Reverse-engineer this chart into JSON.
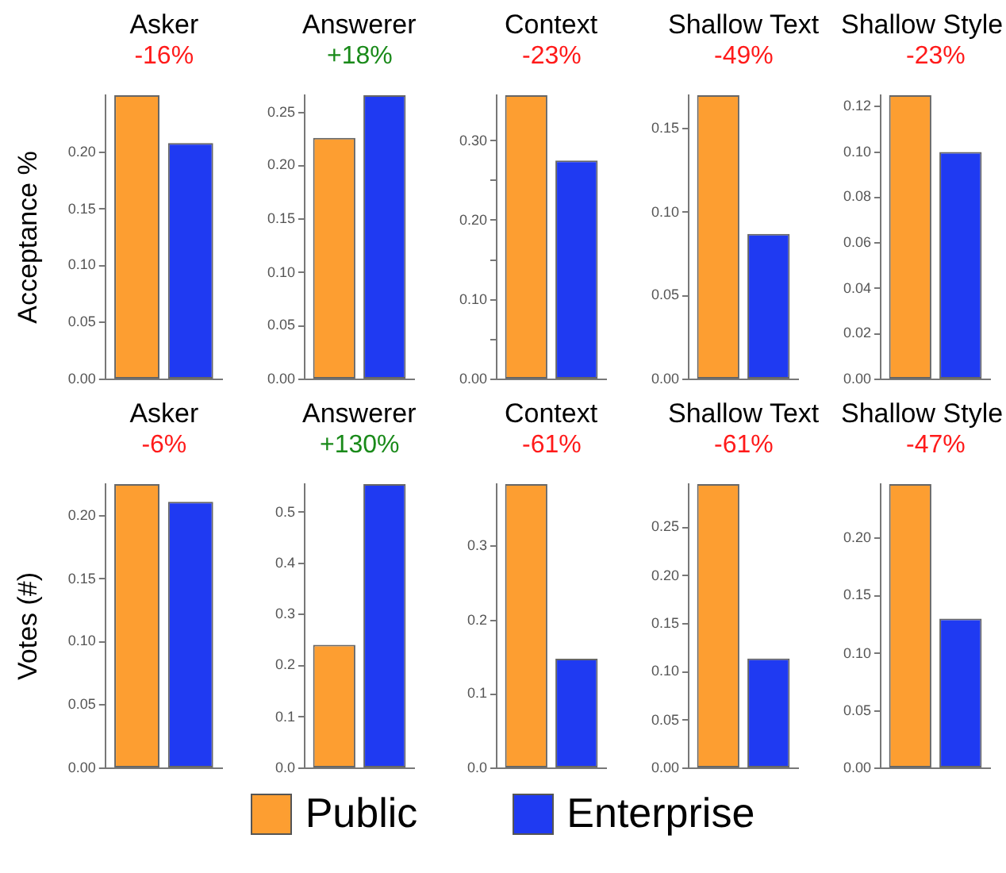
{
  "chart_data": [
    {
      "type": "bar",
      "title": "Asker",
      "subtitle": "-16%",
      "ylabel": "Acceptance %",
      "categories": [
        null
      ],
      "tick_labels": "y",
      "grid": false,
      "series": [
        {
          "color": "#fd9e31",
          "values": [
            0.25
          ]
        },
        {
          "color": "#1f3af2",
          "values": [
            0.208
          ]
        }
      ],
      "ylim": [
        0,
        0.25
      ],
      "yticks": [
        {
          "value": 0,
          "label": "0.00"
        },
        {
          "value": 0.05,
          "label": "0.05"
        },
        {
          "value": 0.1,
          "label": "0.10"
        },
        {
          "value": 0.15,
          "label": "0.15"
        },
        {
          "value": 0.2,
          "label": "0.20"
        }
      ]
    },
    {
      "type": "bar",
      "title": "Answerer",
      "subtitle": "+18%",
      "categories": [
        null
      ],
      "tick_labels": "y",
      "grid": false,
      "series": [
        {
          "color": "#fd9e31",
          "values": [
            0.226
          ]
        },
        {
          "color": "#1f3af2",
          "values": [
            0.266
          ]
        }
      ],
      "ylim": [
        0,
        0.266
      ],
      "yticks": [
        {
          "value": 0,
          "label": "0.00"
        },
        {
          "value": 0.05,
          "label": "0.05"
        },
        {
          "value": 0.1,
          "label": "0.10"
        },
        {
          "value": 0.15,
          "label": "0.15"
        },
        {
          "value": 0.2,
          "label": "0.20"
        },
        {
          "value": 0.25,
          "label": "0.25"
        }
      ]
    },
    {
      "type": "bar",
      "title": "Context",
      "subtitle": "-23%",
      "categories": [
        null
      ],
      "tick_labels": "y",
      "grid": false,
      "series": [
        {
          "color": "#fd9e31",
          "values": [
            0.357
          ]
        },
        {
          "color": "#1f3af2",
          "values": [
            0.275
          ]
        }
      ],
      "ylim": [
        0,
        0.357
      ],
      "yticks": [
        {
          "value": 0,
          "label": "0.00"
        },
        {
          "value": 0.05,
          "label": null
        },
        {
          "value": 0.1,
          "label": "0.10"
        },
        {
          "value": 0.15,
          "label": null
        },
        {
          "value": 0.2,
          "label": "0.20"
        },
        {
          "value": 0.25,
          "label": null
        },
        {
          "value": 0.3,
          "label": "0.30"
        }
      ]
    },
    {
      "type": "bar",
      "title": "Shallow Text",
      "subtitle": "-49%",
      "categories": [
        null
      ],
      "tick_labels": "y",
      "grid": false,
      "series": [
        {
          "color": "#fd9e31",
          "values": [
            0.17
          ]
        },
        {
          "color": "#1f3af2",
          "values": [
            0.087
          ]
        }
      ],
      "ylim": [
        0,
        0.17
      ],
      "yticks": [
        {
          "value": 0,
          "label": "0.00"
        },
        {
          "value": 0.05,
          "label": "0.05"
        },
        {
          "value": 0.1,
          "label": "0.10"
        },
        {
          "value": 0.15,
          "label": "0.15"
        }
      ]
    },
    {
      "type": "bar",
      "title": "Shallow Style",
      "subtitle": "-23%",
      "categories": [
        null
      ],
      "tick_labels": "y",
      "grid": false,
      "series": [
        {
          "color": "#fd9e31",
          "values": [
            0.125
          ]
        },
        {
          "color": "#1f3af2",
          "values": [
            0.1
          ]
        }
      ],
      "ylim": [
        0,
        0.125
      ],
      "yticks": [
        {
          "value": 0,
          "label": "0.00"
        },
        {
          "value": 0.02,
          "label": "0.02"
        },
        {
          "value": 0.04,
          "label": "0.04"
        },
        {
          "value": 0.06,
          "label": "0.06"
        },
        {
          "value": 0.08,
          "label": "0.08"
        },
        {
          "value": 0.1,
          "label": "0.10"
        },
        {
          "value": 0.12,
          "label": "0.12"
        }
      ]
    },
    {
      "type": "bar",
      "title": "Asker",
      "subtitle": "-6%",
      "ylabel": "Votes (#)",
      "categories": [
        null
      ],
      "tick_labels": "y",
      "grid": false,
      "series": [
        {
          "color": "#fd9e31",
          "values": [
            0.225
          ]
        },
        {
          "color": "#1f3af2",
          "values": [
            0.211
          ]
        }
      ],
      "ylim": [
        0,
        0.225
      ],
      "yticks": [
        {
          "value": 0,
          "label": "0.00"
        },
        {
          "value": 0.05,
          "label": "0.05"
        },
        {
          "value": 0.1,
          "label": "0.10"
        },
        {
          "value": 0.15,
          "label": "0.15"
        },
        {
          "value": 0.2,
          "label": "0.20"
        }
      ]
    },
    {
      "type": "bar",
      "title": "Answerer",
      "subtitle": "+130%",
      "categories": [
        null
      ],
      "tick_labels": "y",
      "grid": false,
      "series": [
        {
          "color": "#fd9e31",
          "values": [
            0.241
          ]
        },
        {
          "color": "#1f3af2",
          "values": [
            0.555
          ]
        }
      ],
      "ylim": [
        0,
        0.555
      ],
      "yticks": [
        {
          "value": 0,
          "label": "0.0"
        },
        {
          "value": 0.1,
          "label": "0.1"
        },
        {
          "value": 0.2,
          "label": "0.2"
        },
        {
          "value": 0.3,
          "label": "0.3"
        },
        {
          "value": 0.4,
          "label": "0.4"
        },
        {
          "value": 0.5,
          "label": "0.5"
        }
      ]
    },
    {
      "type": "bar",
      "title": "Context",
      "subtitle": "-61%",
      "categories": [
        null
      ],
      "tick_labels": "y",
      "grid": false,
      "legend": "bottom",
      "series": [
        {
          "name": "Public",
          "color": "#fd9e31",
          "values": [
            0.384
          ]
        },
        {
          "name": "Enterprise",
          "color": "#1f3af2",
          "values": [
            0.148
          ]
        }
      ],
      "ylim": [
        0,
        0.384
      ],
      "yticks": [
        {
          "value": 0,
          "label": "0.0"
        },
        {
          "value": 0.1,
          "label": "0.1"
        },
        {
          "value": 0.2,
          "label": "0.2"
        },
        {
          "value": 0.3,
          "label": "0.3"
        }
      ]
    },
    {
      "type": "bar",
      "title": "Shallow Text",
      "subtitle": "-61%",
      "categories": [
        null
      ],
      "tick_labels": "y",
      "grid": false,
      "series": [
        {
          "color": "#fd9e31",
          "values": [
            0.295
          ]
        },
        {
          "color": "#1f3af2",
          "values": [
            0.114
          ]
        }
      ],
      "ylim": [
        0,
        0.295
      ],
      "yticks": [
        {
          "value": 0,
          "label": "0.00"
        },
        {
          "value": 0.05,
          "label": "0.05"
        },
        {
          "value": 0.1,
          "label": "0.10"
        },
        {
          "value": 0.15,
          "label": "0.15"
        },
        {
          "value": 0.2,
          "label": "0.20"
        },
        {
          "value": 0.25,
          "label": "0.25"
        }
      ]
    },
    {
      "type": "bar",
      "title": "Shallow Style",
      "subtitle": "-47%",
      "categories": [
        null
      ],
      "tick_labels": "y",
      "grid": false,
      "series": [
        {
          "color": "#fd9e31",
          "values": [
            0.247
          ]
        },
        {
          "color": "#1f3af2",
          "values": [
            0.13
          ]
        }
      ],
      "ylim": [
        0,
        0.247
      ],
      "yticks": [
        {
          "value": 0,
          "label": "0.00"
        },
        {
          "value": 0.05,
          "label": "0.05"
        },
        {
          "value": 0.1,
          "label": "0.10"
        },
        {
          "value": 0.15,
          "label": "0.15"
        },
        {
          "value": 0.2,
          "label": "0.20"
        }
      ]
    }
  ]
}
